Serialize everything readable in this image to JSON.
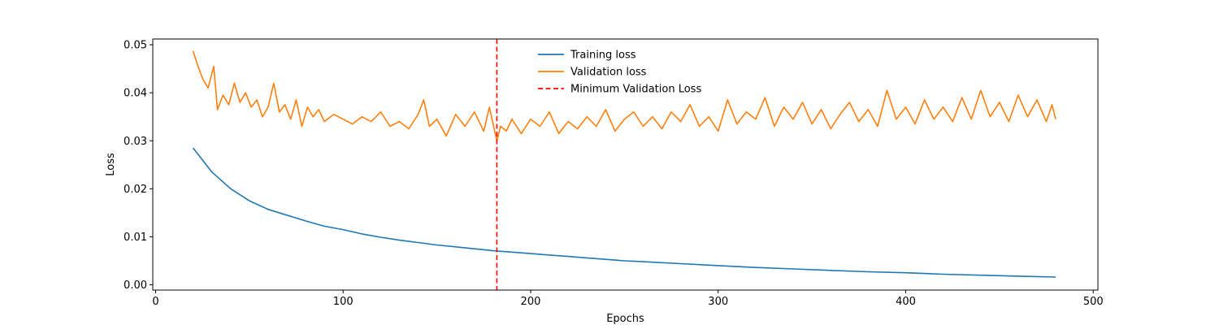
{
  "chart_data": {
    "type": "line",
    "title": "",
    "xlabel": "Epochs",
    "ylabel": "Loss",
    "xlim": [
      -1.5,
      502.5
    ],
    "ylim": [
      -0.0011,
      0.0512
    ],
    "x_ticks": [
      0,
      100,
      200,
      300,
      400,
      500
    ],
    "y_ticks": [
      0.0,
      0.01,
      0.02,
      0.03,
      0.04,
      0.05
    ],
    "x_tick_labels": [
      "0",
      "100",
      "200",
      "300",
      "400",
      "500"
    ],
    "y_tick_labels": [
      "0.00",
      "0.01",
      "0.02",
      "0.03",
      "0.04",
      "0.05"
    ],
    "grid": false,
    "legend_position": "top-center",
    "min_validation_epoch": 182,
    "series": [
      {
        "name": "Training loss",
        "color": "#1f77b4",
        "x": [
          20,
          30,
          40,
          50,
          60,
          70,
          80,
          90,
          100,
          110,
          120,
          130,
          140,
          150,
          160,
          170,
          180,
          190,
          200,
          210,
          220,
          230,
          240,
          250,
          260,
          270,
          280,
          290,
          300,
          320,
          340,
          360,
          380,
          400,
          420,
          440,
          460,
          480
        ],
        "values": [
          0.0285,
          0.0235,
          0.02,
          0.0175,
          0.0157,
          0.0145,
          0.0133,
          0.0122,
          0.0115,
          0.0106,
          0.0099,
          0.0093,
          0.0088,
          0.0083,
          0.0079,
          0.0075,
          0.0071,
          0.0068,
          0.0065,
          0.0062,
          0.0059,
          0.0056,
          0.0053,
          0.005,
          0.0048,
          0.0046,
          0.0044,
          0.0042,
          0.004,
          0.0036,
          0.0033,
          0.003,
          0.0027,
          0.0025,
          0.0022,
          0.002,
          0.0018,
          0.0016
        ]
      },
      {
        "name": "Validation loss",
        "color": "#ff7f0e",
        "x": [
          20,
          22,
          25,
          28,
          31,
          33,
          36,
          39,
          42,
          45,
          48,
          51,
          54,
          57,
          60,
          63,
          66,
          69,
          72,
          75,
          78,
          81,
          84,
          87,
          90,
          95,
          100,
          105,
          110,
          115,
          120,
          125,
          130,
          135,
          140,
          143,
          146,
          150,
          155,
          160,
          165,
          170,
          175,
          178,
          180,
          182,
          184,
          187,
          190,
          195,
          200,
          205,
          210,
          215,
          220,
          225,
          230,
          235,
          240,
          245,
          250,
          255,
          260,
          265,
          270,
          275,
          280,
          285,
          290,
          295,
          300,
          305,
          310,
          315,
          320,
          325,
          330,
          335,
          340,
          345,
          350,
          355,
          360,
          365,
          370,
          375,
          380,
          385,
          390,
          395,
          400,
          405,
          410,
          415,
          420,
          425,
          430,
          435,
          440,
          445,
          450,
          455,
          460,
          465,
          470,
          475,
          478,
          480
        ],
        "values": [
          0.0487,
          0.0462,
          0.043,
          0.041,
          0.0455,
          0.0365,
          0.0395,
          0.0375,
          0.042,
          0.038,
          0.04,
          0.037,
          0.0385,
          0.035,
          0.037,
          0.042,
          0.036,
          0.0375,
          0.0345,
          0.0385,
          0.033,
          0.037,
          0.035,
          0.0365,
          0.034,
          0.0355,
          0.0345,
          0.0335,
          0.035,
          0.034,
          0.036,
          0.033,
          0.034,
          0.0325,
          0.0355,
          0.0385,
          0.033,
          0.0345,
          0.031,
          0.0355,
          0.033,
          0.036,
          0.032,
          0.037,
          0.0335,
          0.03,
          0.033,
          0.032,
          0.0345,
          0.0315,
          0.0345,
          0.033,
          0.036,
          0.0315,
          0.034,
          0.0325,
          0.035,
          0.033,
          0.0365,
          0.032,
          0.0345,
          0.036,
          0.033,
          0.035,
          0.0325,
          0.036,
          0.034,
          0.0375,
          0.033,
          0.035,
          0.032,
          0.0385,
          0.0335,
          0.036,
          0.0345,
          0.039,
          0.033,
          0.037,
          0.0345,
          0.038,
          0.0335,
          0.0365,
          0.0325,
          0.0355,
          0.038,
          0.034,
          0.0365,
          0.033,
          0.0405,
          0.0345,
          0.037,
          0.0335,
          0.0385,
          0.0345,
          0.037,
          0.034,
          0.039,
          0.0345,
          0.0405,
          0.035,
          0.038,
          0.034,
          0.0395,
          0.035,
          0.0385,
          0.034,
          0.0375,
          0.0345
        ]
      }
    ],
    "reference_lines": [
      {
        "name": "Minimum Validation Loss",
        "color": "#ff0000",
        "style": "dashed",
        "x": 182
      }
    ]
  }
}
